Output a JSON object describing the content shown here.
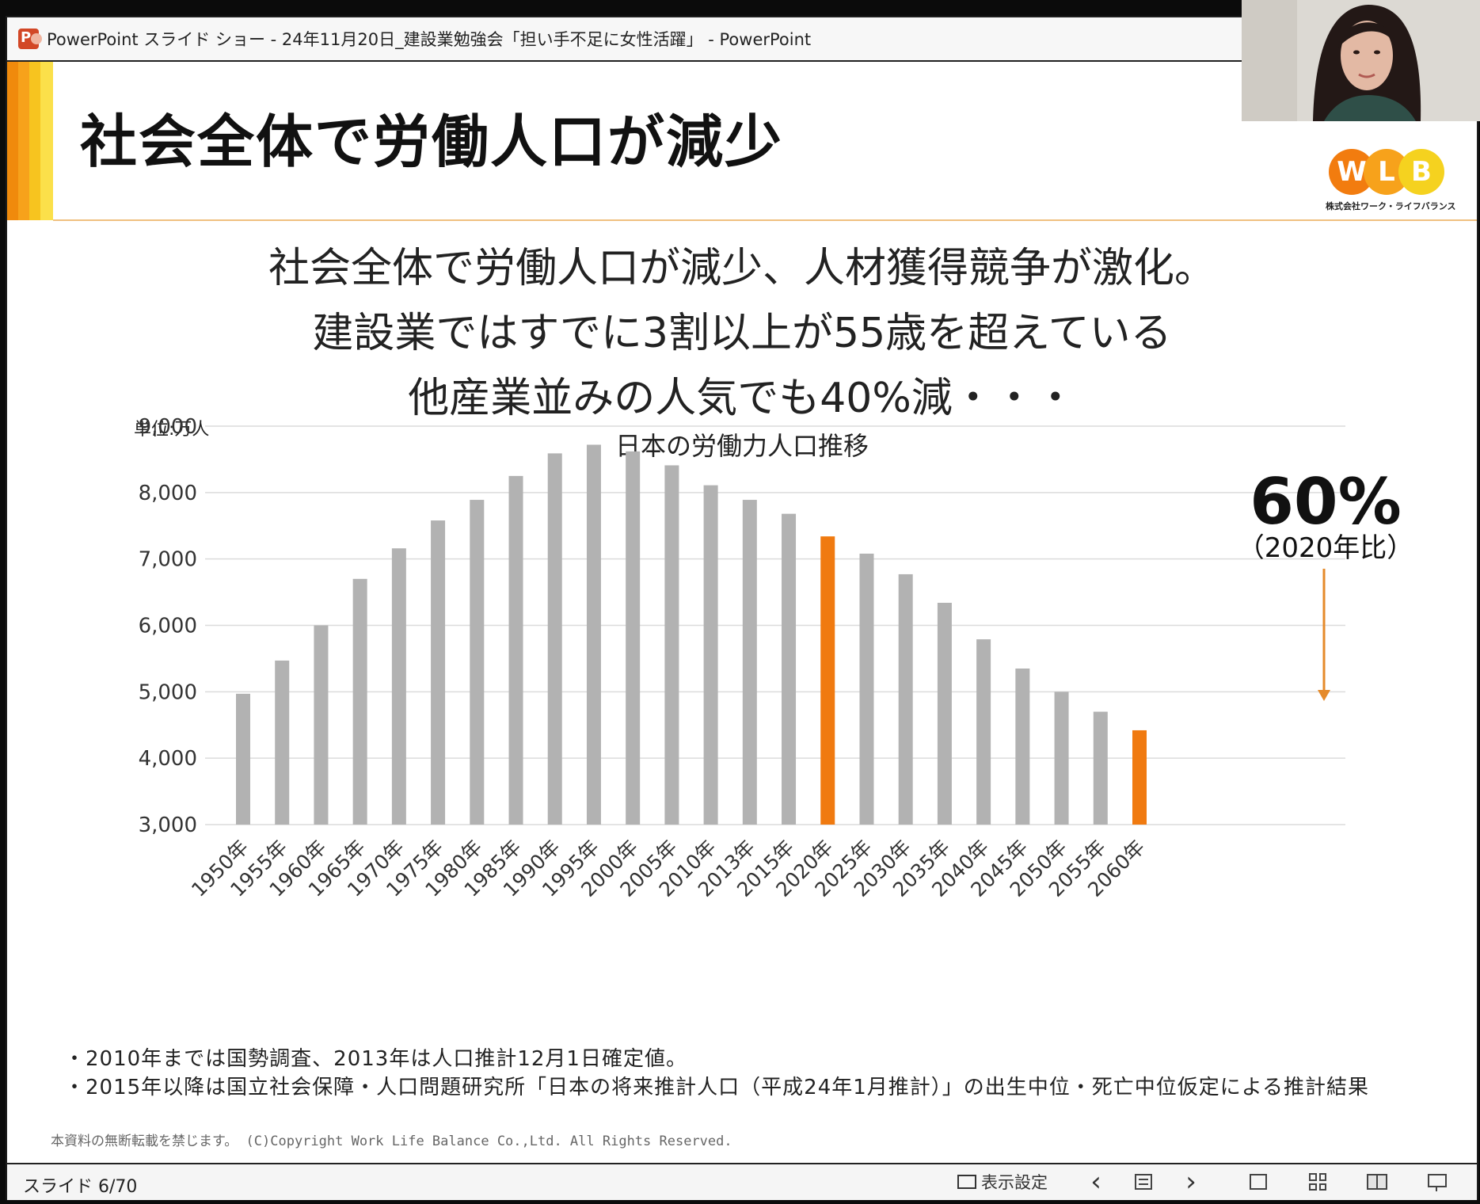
{
  "window": {
    "title": "PowerPoint スライド ショー  -  24年11月20日_建設業勉強会「担い手不足に女性活躍」 - PowerPoint",
    "app_icon": "powerpoint-icon"
  },
  "slide": {
    "title": "社会全体で労働人口が減少",
    "logo_letters": [
      "W",
      "L",
      "B"
    ],
    "logo_colors": [
      "#f27c0f",
      "#f7a21b",
      "#f5d21f"
    ],
    "logo_subtitle": "株式会社ワーク・ライフバランス",
    "lines": [
      "社会全体で労働人口が減少、人材獲得競争が激化。",
      "建設業ではすでに3割以上が55歳を超えている",
      "他産業並みの人気でも40%減・・・"
    ],
    "unit_label": "単位:万人",
    "annotation_big": "60%",
    "annotation_small": "（2020年比）",
    "notes": [
      "・2010年までは国勢調査、2013年は人口推計12月1日確定値。",
      "・2015年以降は国立社会保障・人口問題研究所「日本の将来推計人口（平成24年1月推計）」の出生中位・死亡中位仮定による推計結果"
    ],
    "copyright": "本資料の無断転載を禁じます。   (C)Copyright  Work Life Balance Co.,Ltd. All Rights Reserved."
  },
  "chart_data": {
    "type": "bar",
    "title": "日本の労働力人口推移",
    "ylabel": "単位:万人",
    "ylim": [
      3000,
      9000
    ],
    "yticks": [
      "9,000",
      "8,000",
      "7,000",
      "6,000",
      "5,000",
      "4,000",
      "3,000"
    ],
    "ytick_values": [
      9000,
      8000,
      7000,
      6000,
      5000,
      4000,
      3000
    ],
    "grid": true,
    "categories": [
      "1950年",
      "1955年",
      "1960年",
      "1965年",
      "1970年",
      "1975年",
      "1980年",
      "1985年",
      "1990年",
      "1995年",
      "2000年",
      "2005年",
      "2010年",
      "2013年",
      "2015年",
      "2020年",
      "2025年",
      "2030年",
      "2035年",
      "2040年",
      "2045年",
      "2050年",
      "2055年",
      "2060年"
    ],
    "values": [
      4970,
      5470,
      6000,
      6700,
      7160,
      7580,
      7890,
      8250,
      8590,
      8720,
      8620,
      8410,
      8110,
      7890,
      7680,
      7340,
      7080,
      6770,
      6340,
      5790,
      5350,
      5000,
      4700,
      4420
    ],
    "highlight": [
      "2020年",
      "2060年"
    ],
    "colors": {
      "default": "#b2b2b2",
      "highlight": "#f07a10",
      "arrow": "#e58a2a"
    }
  },
  "statusbar": {
    "slide_counter": "スライド 6/70",
    "view_setting": "表示設定",
    "prev": "‹",
    "next": "›"
  }
}
